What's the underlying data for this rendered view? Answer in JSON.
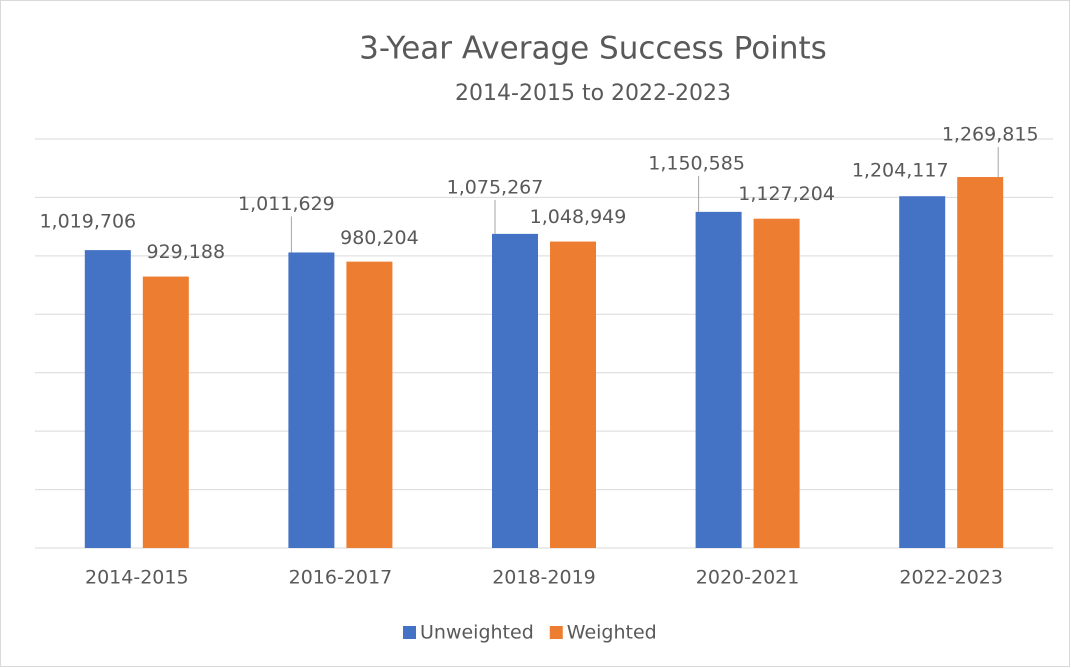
{
  "chart_data": {
    "type": "bar",
    "title": "3-Year Average Success Points",
    "subtitle": "2014-2015 to 2022-2023",
    "categories": [
      "2014-2015",
      "2016-2017",
      "2018-2019",
      "2020-2021",
      "2022-2023"
    ],
    "series": [
      {
        "name": "Unweighted",
        "color": "#4472c4",
        "values": [
          1019706,
          1011629,
          1075267,
          1150585,
          1204117
        ],
        "value_labels": [
          "1,019,706",
          "1,011,629",
          "1,075,267",
          "1,150,585",
          "1,204,117"
        ]
      },
      {
        "name": "Weighted",
        "color": "#ed7d31",
        "values": [
          929188,
          980204,
          1048949,
          1127204,
          1269815
        ],
        "value_labels": [
          "929,188",
          "980,204",
          "1,048,949",
          "1,127,204",
          "1,269,815"
        ]
      }
    ],
    "ylim": [
      0,
      1400000
    ],
    "yticks": [
      0,
      200000,
      400000,
      600000,
      800000,
      1000000,
      1200000,
      1400000
    ],
    "grid": true,
    "legend": "bottom"
  }
}
